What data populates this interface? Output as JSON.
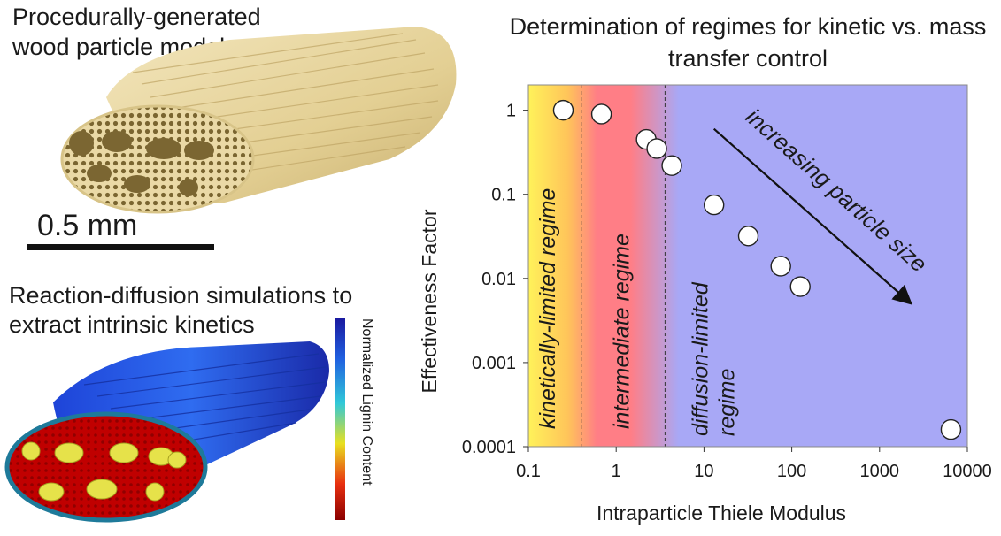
{
  "left_panel": {
    "top_caption": "Procedurally-generated wood particle models",
    "scale_bar_label": "0.5 mm",
    "bottom_caption": "Reaction-diffusion simulations to extract intrinsic kinetics",
    "colorbar_label": "Normalized Lignin Content"
  },
  "chart_data": {
    "type": "scatter",
    "title": "Determination of regimes for kinetic vs. mass transfer control",
    "xlabel": "Intraparticle Thiele  Modulus",
    "ylabel": "Effectiveness  Factor",
    "xscale": "log",
    "yscale": "log",
    "xlim": [
      0.1,
      10000
    ],
    "ylim": [
      0.0001,
      2
    ],
    "x_ticks": [
      "0.1",
      "1",
      "10",
      "100",
      "1000",
      "10000"
    ],
    "y_ticks": [
      "0.0001",
      "0.001",
      "0.01",
      "0.1",
      "1"
    ],
    "points": [
      {
        "x": 0.25,
        "y": 1.0
      },
      {
        "x": 0.68,
        "y": 0.9
      },
      {
        "x": 2.2,
        "y": 0.45
      },
      {
        "x": 2.9,
        "y": 0.35
      },
      {
        "x": 4.3,
        "y": 0.22
      },
      {
        "x": 13,
        "y": 0.075
      },
      {
        "x": 32,
        "y": 0.032
      },
      {
        "x": 75,
        "y": 0.014
      },
      {
        "x": 125,
        "y": 0.008
      },
      {
        "x": 6500,
        "y": 0.00016
      }
    ],
    "regime_boundaries_x": [
      0.4,
      3.6
    ],
    "regimes": [
      {
        "label": "kinetically-limited regime",
        "lines": [
          "kinetically-limited regime"
        ],
        "color": "#fff25a"
      },
      {
        "label": "intermediate regime",
        "lines": [
          "intermediate regime"
        ],
        "color": "#ff7e86"
      },
      {
        "label": "diffusion-limited regime",
        "lines": [
          "diffusion-limited",
          "regime"
        ],
        "color": "#a8a8f6"
      }
    ],
    "arrow_label": "increasing particle size",
    "grid": false,
    "legend": "none"
  }
}
